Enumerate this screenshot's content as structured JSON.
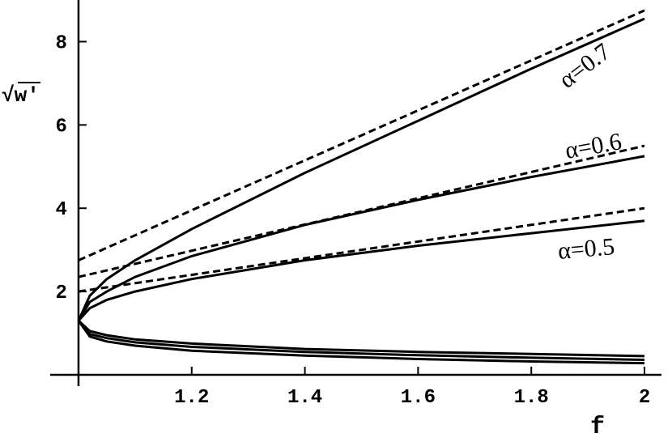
{
  "chart_data": {
    "type": "line",
    "xlabel": "f",
    "ylabel": "√w'",
    "annotations": [
      "α=0.7",
      "α=0.6",
      "α=0.5"
    ],
    "xlim": [
      0.95,
      2.03
    ],
    "ylim": [
      0,
      9
    ],
    "xticks": [
      1.2,
      1.4,
      1.6,
      1.8,
      2
    ],
    "yticks": [
      2,
      4,
      6,
      8
    ],
    "y_axis_at": 1,
    "series": [
      {
        "color": "#000000",
        "dashed": false,
        "x": [
          1,
          1.02,
          1.05,
          1.1,
          1.2,
          1.4,
          1.6,
          1.8,
          2
        ],
        "values": [
          1.3,
          1.9,
          2.3,
          2.75,
          3.5,
          4.85,
          6.1,
          7.35,
          8.55
        ]
      },
      {
        "color": "#000000",
        "dashed": false,
        "x": [
          1,
          1.02,
          1.05,
          1.1,
          1.2,
          1.4,
          1.6,
          1.8,
          2
        ],
        "values": [
          1.3,
          1.75,
          2.0,
          2.35,
          2.85,
          3.6,
          4.2,
          4.75,
          5.25
        ]
      },
      {
        "color": "#000000",
        "dashed": false,
        "x": [
          1,
          1.02,
          1.05,
          1.1,
          1.2,
          1.4,
          1.6,
          1.8,
          2
        ],
        "values": [
          1.3,
          1.6,
          1.8,
          2.0,
          2.3,
          2.75,
          3.1,
          3.4,
          3.7
        ]
      },
      {
        "color": "#000000",
        "dashed": false,
        "x": [
          1,
          1.02,
          1.05,
          1.1,
          1.2,
          1.4,
          1.6,
          1.8,
          2
        ],
        "values": [
          1.3,
          1.05,
          0.95,
          0.85,
          0.75,
          0.62,
          0.55,
          0.5,
          0.45
        ]
      },
      {
        "color": "#000000",
        "dashed": false,
        "x": [
          1,
          1.02,
          1.05,
          1.1,
          1.2,
          1.4,
          1.6,
          1.8,
          2
        ],
        "values": [
          1.3,
          0.98,
          0.88,
          0.78,
          0.67,
          0.55,
          0.47,
          0.41,
          0.36
        ]
      },
      {
        "color": "#000000",
        "dashed": false,
        "x": [
          1,
          1.02,
          1.05,
          1.1,
          1.2,
          1.4,
          1.6,
          1.8,
          2
        ],
        "values": [
          1.3,
          0.92,
          0.8,
          0.7,
          0.58,
          0.46,
          0.38,
          0.32,
          0.28
        ]
      },
      {
        "color": "#000000",
        "dashed": true,
        "x": [
          1,
          2
        ],
        "values": [
          2.75,
          8.75
        ]
      },
      {
        "color": "#000000",
        "dashed": true,
        "x": [
          1,
          2
        ],
        "values": [
          2.35,
          5.5
        ]
      },
      {
        "color": "#000000",
        "dashed": true,
        "x": [
          1,
          2
        ],
        "values": [
          2.0,
          4.0
        ]
      }
    ]
  }
}
